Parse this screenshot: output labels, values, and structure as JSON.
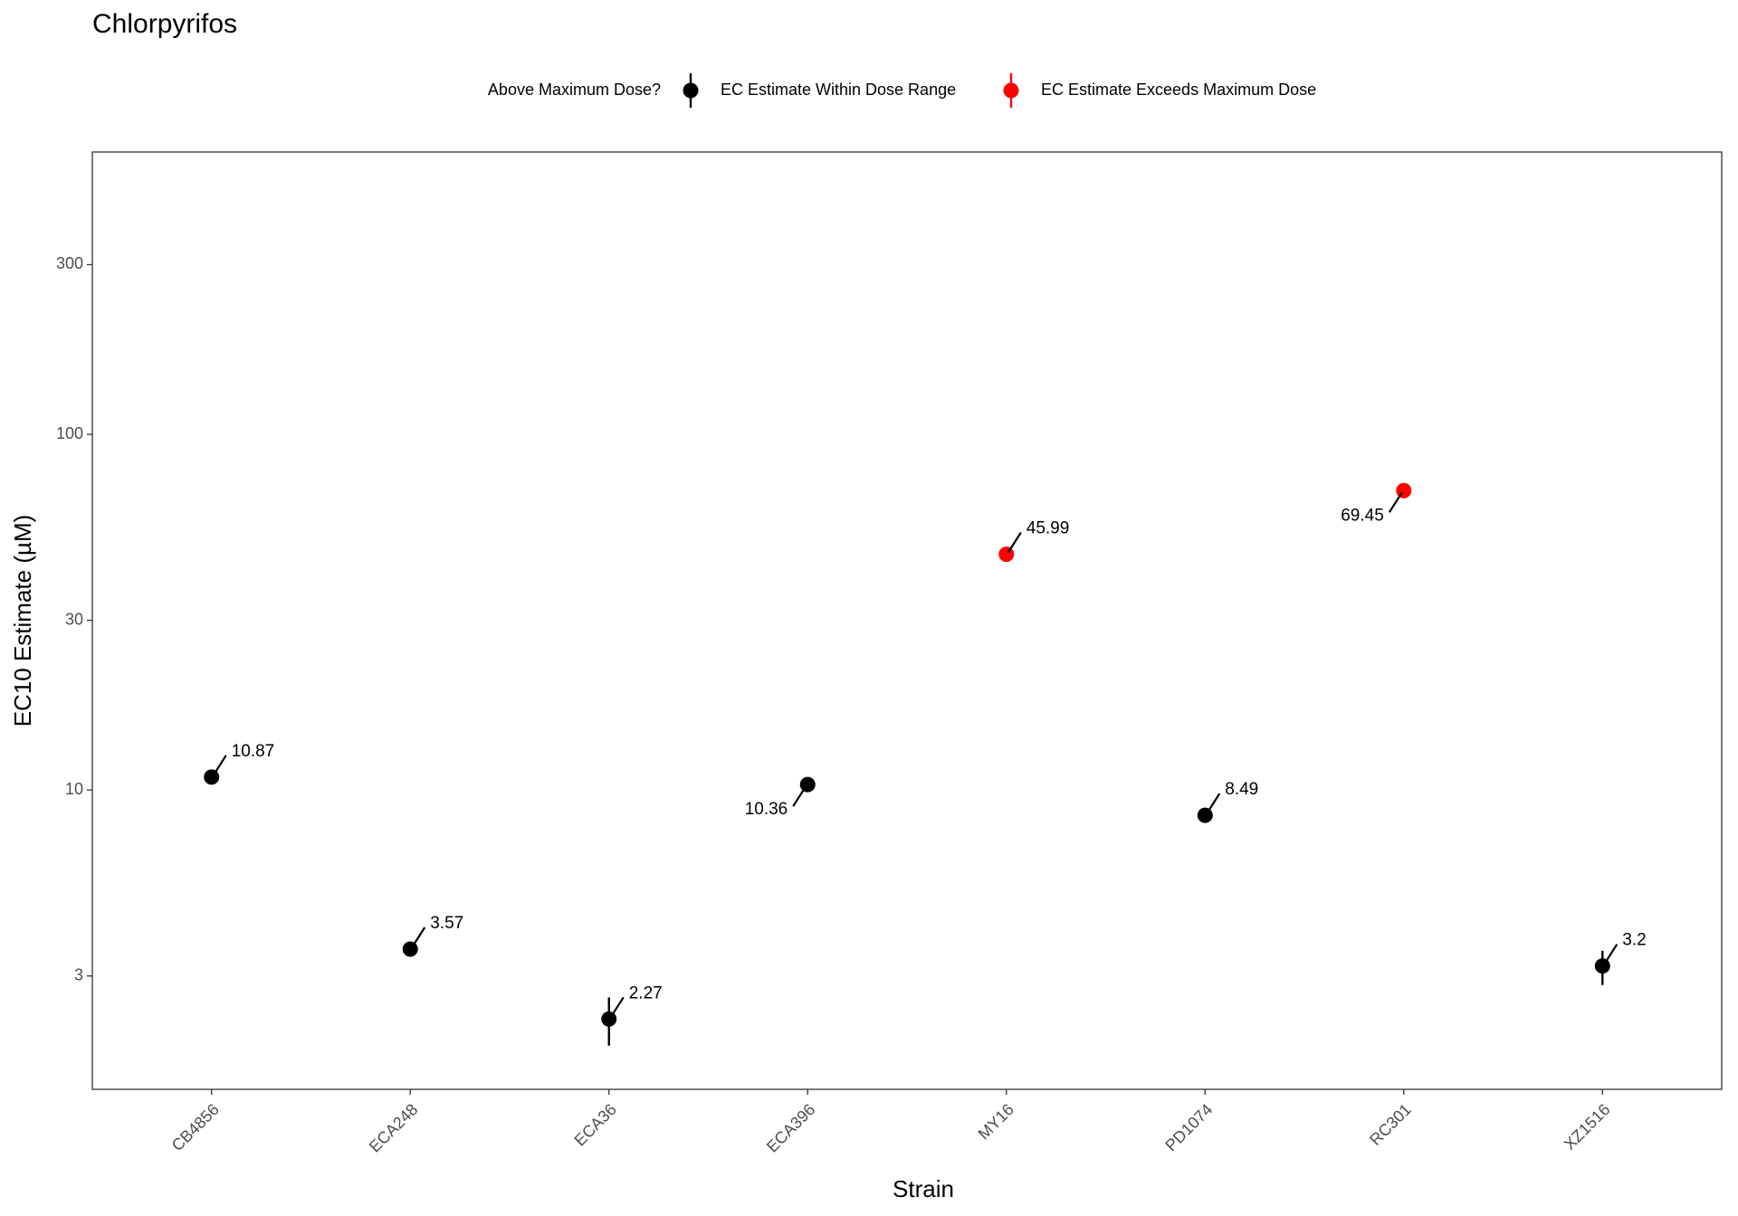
{
  "chart_data": {
    "type": "scatter",
    "title": "Chlorpyrifos",
    "legend_title": "Above Maximum Dose?",
    "xlabel": "Strain",
    "ylabel": "EC10 Estimate (µM)",
    "categories": [
      "CB4856",
      "ECA248",
      "ECA36",
      "ECA396",
      "MY16",
      "PD1074",
      "RC301",
      "XZ1516"
    ],
    "series": [
      {
        "name": "EC Estimate Within Dose Range",
        "color": "#000000",
        "values": [
          10.87,
          3.57,
          2.27,
          10.36,
          null,
          8.49,
          null,
          3.2
        ],
        "lower": [
          null,
          null,
          1.91,
          null,
          null,
          null,
          null,
          2.83
        ],
        "upper": [
          null,
          null,
          2.61,
          null,
          null,
          null,
          null,
          3.53
        ]
      },
      {
        "name": "EC Estimate Exceeds Maximum Dose",
        "color": "#ff0000",
        "values": [
          null,
          null,
          null,
          null,
          45.99,
          null,
          69.45,
          null
        ]
      }
    ],
    "ylim": [
      1.44,
      622
    ],
    "yticks": [
      3,
      10,
      30,
      100,
      300
    ],
    "log_y": true,
    "grid": false,
    "legend_position": "top"
  }
}
